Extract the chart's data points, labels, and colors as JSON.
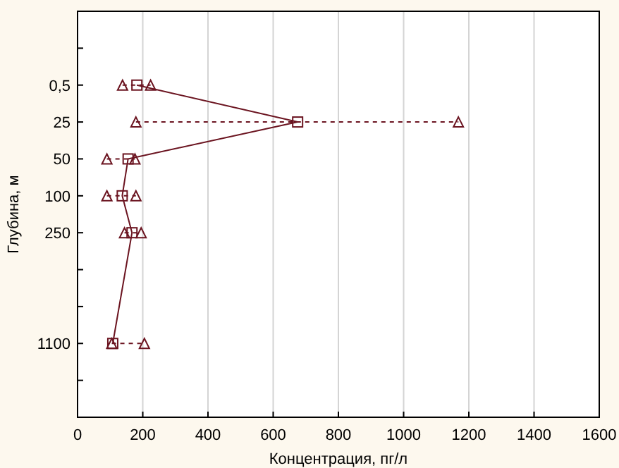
{
  "chart_data": {
    "type": "line",
    "orientation": "horizontal",
    "xlabel": "Концентрация, пг/л",
    "ylabel": "Глубина, м",
    "categories": [
      null,
      "0,5",
      "25",
      "50",
      "100",
      "250",
      null,
      null,
      "1100",
      null
    ],
    "series": [
      {
        "color": "#6b1420",
        "marker": "square",
        "values": [
          null,
          182,
          675,
          155,
          137,
          167,
          null,
          null,
          108,
          null
        ]
      },
      {
        "type": "scatter",
        "color": "#6b1420",
        "marker": "triangle",
        "values": [
          null,
          138,
          179,
          90,
          90,
          144,
          null,
          null,
          105,
          null
        ]
      },
      {
        "type": "scatter",
        "color": "#6b1420",
        "marker": "triangle",
        "values": [
          null,
          224,
          1168,
          176,
          179,
          195,
          null,
          null,
          205,
          null
        ]
      }
    ],
    "xlim": [
      0,
      1600
    ],
    "xticks": [
      0,
      200,
      400,
      600,
      800,
      1000,
      1200,
      1400,
      1600
    ],
    "grid": "x",
    "line_style": "solid"
  }
}
